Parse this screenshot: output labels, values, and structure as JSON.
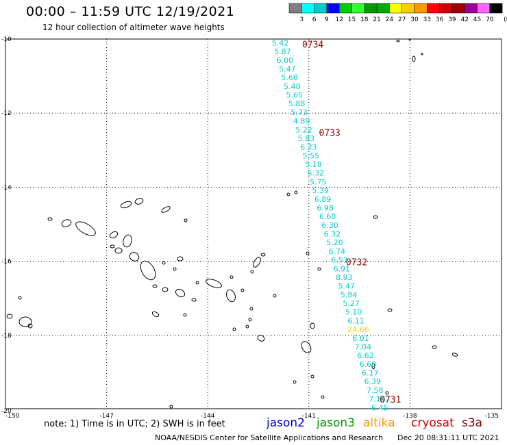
{
  "title": "00:00 – 11:59 UTC 12/19/2021",
  "subtitle": "12 hour collection of altimeter wave heights",
  "note": "note: 1) Time is in UTC; 2) SWH is in feet",
  "credit": "NOAA/NESDIS Center for Satellite Applications and Research",
  "timestamp": "Dec 20 08:31:11 UTC 2021",
  "satellites": [
    {
      "name": "jason2",
      "color": "#0000cc"
    },
    {
      "name": "jason3",
      "color": "#009900"
    },
    {
      "name": "altika",
      "color": "#ff9900"
    },
    {
      "name": "cryosat",
      "color": "#cc0000"
    },
    {
      "name": "s3a",
      "color": "#880000"
    }
  ],
  "colorbar": {
    "labels": [
      "3",
      "6",
      "9",
      "12",
      "15",
      "18",
      "21",
      "24",
      "27",
      "30",
      "33",
      "36",
      "39",
      "42",
      "45",
      "70"
    ],
    "unit": "(ft)",
    "colors": [
      "#7f7f7f",
      "#00ffff",
      "#00cccc",
      "#0000ff",
      "#00cc00",
      "#33ff33",
      "#009900",
      "#00aa00",
      "#ffff00",
      "#ffcc00",
      "#ff9900",
      "#ff0000",
      "#cc0000",
      "#990000",
      "#990099",
      "#ff66ff",
      "#000000"
    ]
  },
  "lon_labels": [
    "-150",
    "-147",
    "-144",
    "-141",
    "-138",
    "-135"
  ],
  "lat_labels": [
    "-10",
    "-12",
    "-14",
    "-16",
    "-18",
    "-20"
  ],
  "track": {
    "lon_start": -141.85,
    "lon_end": -138.9,
    "lat_start": -10.1,
    "lat_end": -19.95,
    "values": [
      "5.42",
      "5.87",
      "6.00",
      "5.47",
      "5.68",
      "5.40",
      "5.65",
      "5.88",
      "5.73",
      "4.89",
      "5.22",
      "5.83",
      "6.23",
      "5.55",
      "5.18",
      "5.32",
      "5.75",
      "5.39",
      "6.89",
      "6.98",
      "6.60",
      "6.30",
      "6.32",
      "5.20",
      "6.74",
      "6.53",
      "6.91",
      "8.93",
      "5.47",
      "5.84",
      "5.27",
      "5.10",
      "6.11",
      "24.66",
      "6.01",
      "7.04",
      "6.62",
      "6.68",
      "6.17",
      "6.39",
      "7.58",
      "7.16",
      "6.45"
    ],
    "highlight_color": "#ffcc00",
    "default_color": "#00cccc"
  },
  "times": [
    {
      "label": "0734",
      "lon": -141.2,
      "lat": -10.12
    },
    {
      "label": "0733",
      "lon": -140.7,
      "lat": -12.5
    },
    {
      "label": "0732",
      "lon": -139.9,
      "lat": -16.0
    },
    {
      "label": "0731",
      "lon": -138.9,
      "lat": -19.7
    }
  ]
}
